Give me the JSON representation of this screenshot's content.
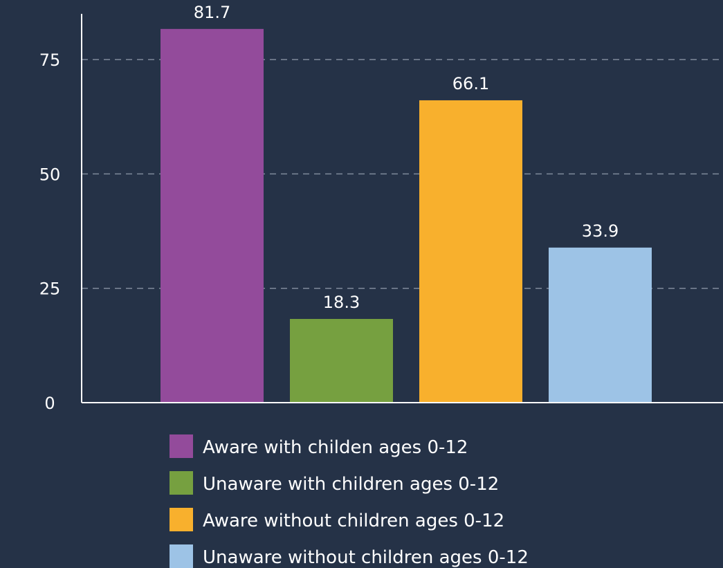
{
  "chart_data": {
    "type": "bar",
    "title": "",
    "xlabel": "",
    "ylabel": "",
    "ylim": [
      0,
      85
    ],
    "yticks": [
      0,
      25,
      50,
      75
    ],
    "grid": true,
    "legend_position": "bottom",
    "series": [
      {
        "name": "Aware with childen ages 0-12",
        "value": 81.7,
        "label": "81.7",
        "color": "#934b9b"
      },
      {
        "name": "Unaware with children ages 0-12",
        "value": 18.3,
        "label": "18.3",
        "color": "#76a040"
      },
      {
        "name": "Aware without children ages 0-12",
        "value": 66.1,
        "label": "66.1",
        "color": "#f8b02d"
      },
      {
        "name": "Unaware without children ages 0-12",
        "value": 33.9,
        "label": "33.9",
        "color": "#9dc3e6"
      }
    ]
  }
}
